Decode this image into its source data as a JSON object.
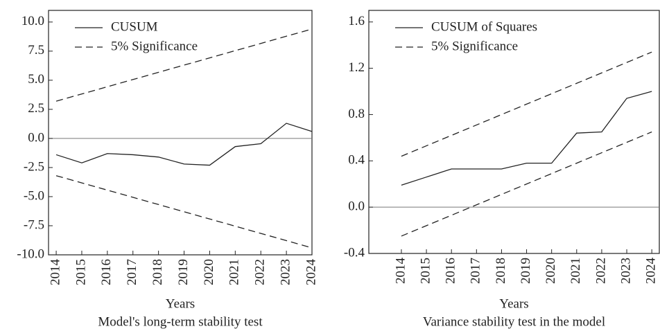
{
  "chart_data": [
    {
      "type": "line",
      "caption": "Model's long-term stability test",
      "x_label": "Years",
      "xlim": [
        2013.7,
        2024
      ],
      "xticks": [
        2014,
        2015,
        2016,
        2017,
        2018,
        2019,
        2020,
        2021,
        2022,
        2023,
        2024
      ],
      "ylim": [
        -10,
        11
      ],
      "yticks": [
        {
          "value": -10,
          "label": "-10.0"
        },
        -7.5,
        {
          "value": -5,
          "label": "-5.0"
        },
        -2.5,
        {
          "value": 0,
          "label": "0.0"
        },
        2.5,
        {
          "value": 5,
          "label": "5.0"
        },
        7.5,
        {
          "value": 10,
          "label": "10.0"
        }
      ],
      "legend": "upper left",
      "series": [
        {
          "name": "CUSUM",
          "color": "#222222",
          "dashed": false,
          "x": [
            2014,
            2015,
            2016,
            2017,
            2018,
            2019,
            2020,
            2021,
            2022,
            2023,
            2024
          ],
          "values": [
            -1.4,
            -2.1,
            -1.3,
            -1.4,
            -1.6,
            -2.2,
            -2.3,
            -0.7,
            -0.45,
            1.3,
            0.6
          ]
        },
        {
          "name": "5% Significance",
          "color": "#222222",
          "dashed": true,
          "x": [
            2014,
            2024
          ],
          "values": [
            3.2,
            9.4
          ]
        },
        {
          "name": null,
          "color": "#222222",
          "dashed": true,
          "x": [
            2014,
            2024
          ],
          "values": [
            -3.2,
            -9.4
          ]
        }
      ]
    },
    {
      "type": "line",
      "caption": "Variance stability test in the model",
      "x_label": "Years",
      "xlim": [
        2012.7,
        2024.3
      ],
      "xticks": [
        2014,
        2015,
        2016,
        2017,
        2018,
        2019,
        2020,
        2021,
        2022,
        2023,
        2024
      ],
      "ylim": [
        -0.4,
        1.7
      ],
      "yticks": [
        -0.4,
        {
          "value": 0,
          "label": "0.0"
        },
        0.4,
        0.8,
        1.2,
        1.6
      ],
      "legend": "upper left",
      "series": [
        {
          "name": "CUSUM of Squares",
          "color": "#222222",
          "dashed": false,
          "x": [
            2014,
            2015,
            2016,
            2017,
            2018,
            2019,
            2020,
            2021,
            2022,
            2023,
            2024
          ],
          "values": [
            0.19,
            0.26,
            0.33,
            0.33,
            0.33,
            0.38,
            0.38,
            0.64,
            0.65,
            0.94,
            1.0
          ]
        },
        {
          "name": "5% Significance",
          "color": "#222222",
          "dashed": true,
          "x": [
            2014,
            2024
          ],
          "values": [
            0.44,
            1.34
          ]
        },
        {
          "name": null,
          "color": "#222222",
          "dashed": true,
          "x": [
            2014,
            2024
          ],
          "values": [
            -0.25,
            0.65
          ]
        }
      ]
    }
  ]
}
